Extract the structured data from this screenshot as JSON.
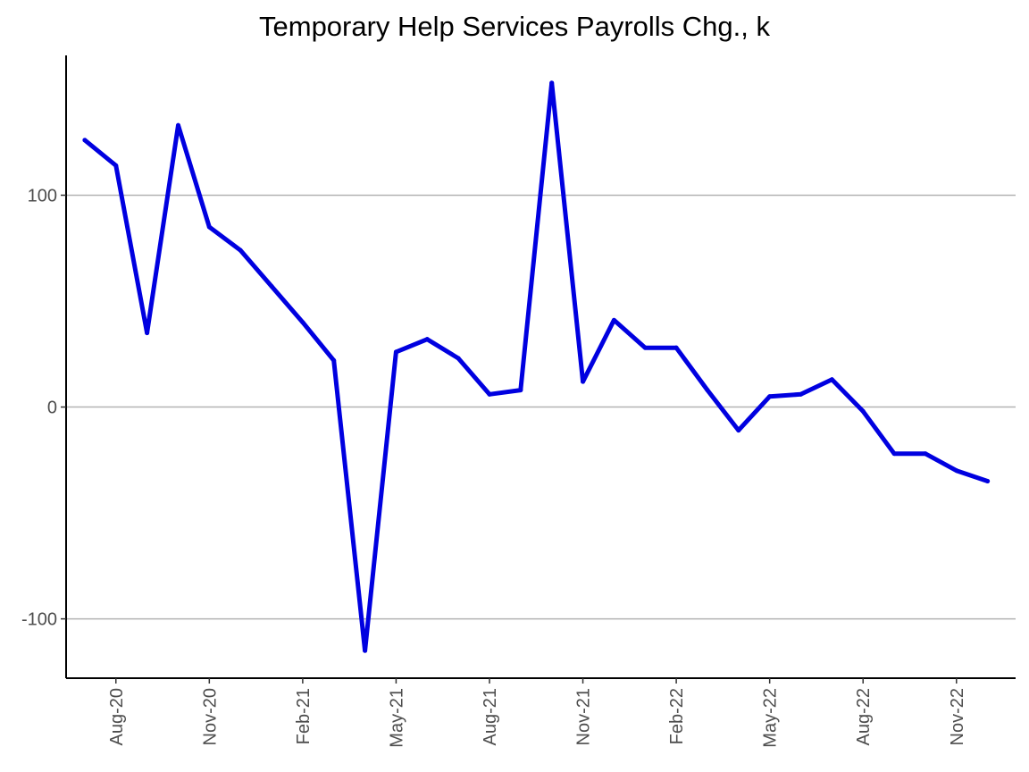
{
  "chart_data": {
    "type": "line",
    "title": "Temporary Help Services Payrolls Chg., k",
    "xlabel": "",
    "ylabel": "",
    "x": [
      "Jul-20",
      "Aug-20",
      "Sep-20",
      "Oct-20",
      "Nov-20",
      "Dec-20",
      "Jan-21",
      "Feb-21",
      "Mar-21",
      "Apr-21",
      "May-21",
      "Jun-21",
      "Jul-21",
      "Aug-21",
      "Sep-21",
      "Oct-21",
      "Nov-21",
      "Dec-21",
      "Jan-22",
      "Feb-22",
      "Mar-22",
      "Apr-22",
      "May-22",
      "Jun-22",
      "Jul-22",
      "Aug-22",
      "Sep-22",
      "Oct-22",
      "Nov-22",
      "Dec-22"
    ],
    "series": [
      {
        "values": [
          126,
          114,
          35,
          133,
          85,
          74,
          57,
          40,
          22,
          -115,
          26,
          32,
          23,
          6,
          8,
          153,
          12,
          41,
          28,
          28,
          8,
          -11,
          5,
          6,
          13,
          -2,
          -22,
          -22,
          -30,
          -35
        ]
      }
    ],
    "ylim": [
      -128,
      166
    ],
    "xlim": [
      -0.6,
      29.9
    ],
    "y_ticks": [
      -100,
      0,
      100
    ],
    "y_tick_labels": [
      "-100",
      "0",
      "100"
    ],
    "x_ticks": [
      1,
      4,
      7,
      10,
      13,
      16,
      19,
      22,
      25,
      28
    ],
    "x_tick_labels": [
      "Aug-20",
      "Nov-20",
      "Feb-21",
      "May-21",
      "Aug-21",
      "Nov-21",
      "Feb-22",
      "May-22",
      "Aug-22",
      "Nov-22"
    ],
    "grid": "horizontal-major",
    "line_color": "#0000e0",
    "grid_color": "#b3b3b3",
    "axis_color": "#000000"
  }
}
